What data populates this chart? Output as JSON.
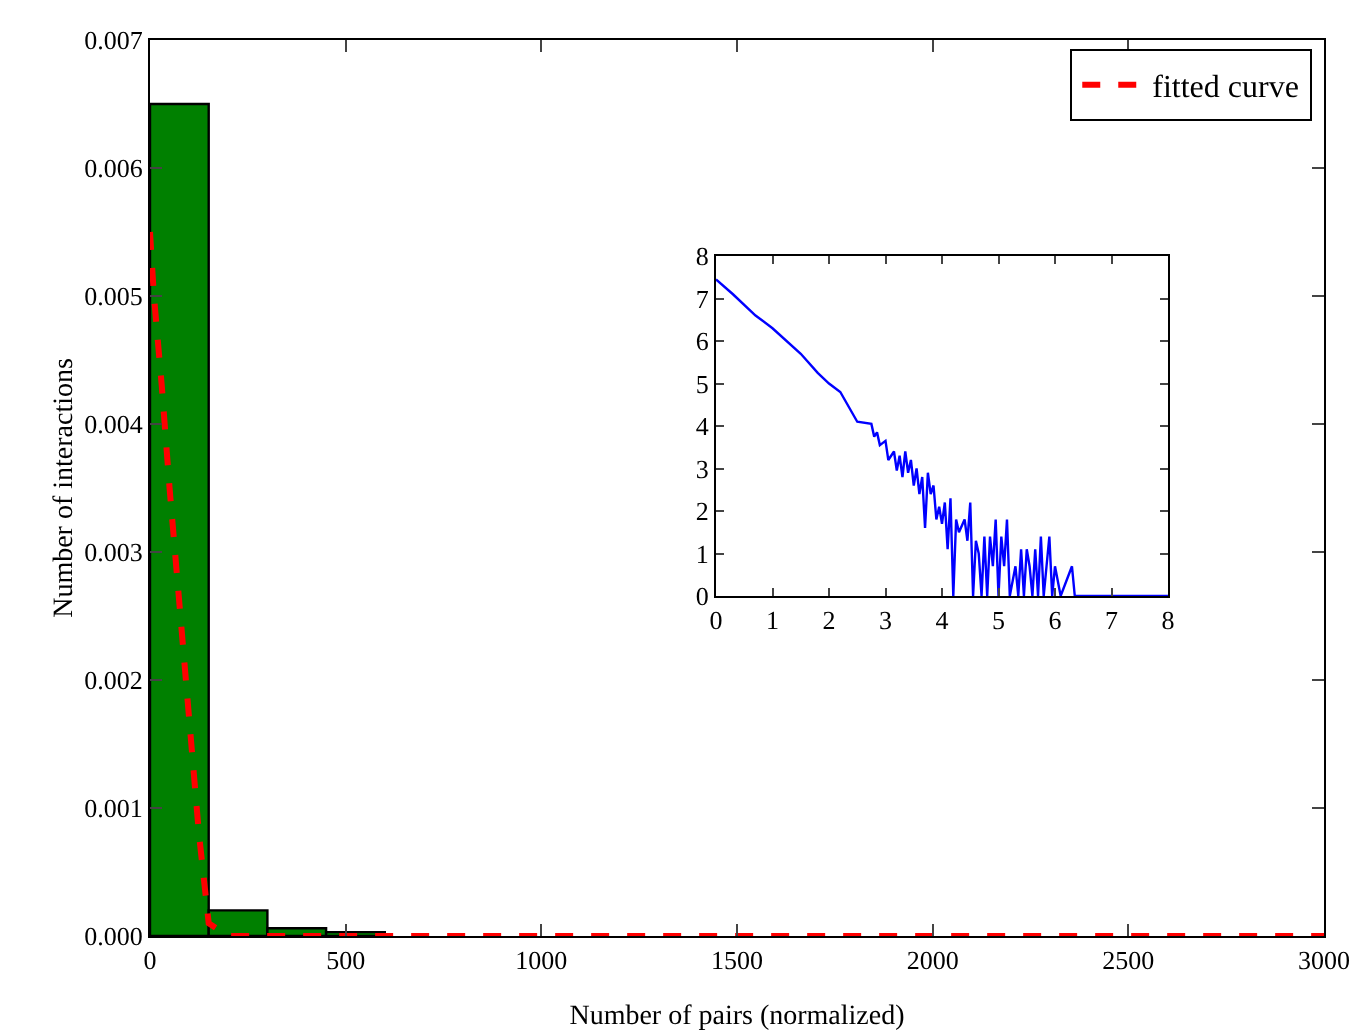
{
  "chart_data": [
    {
      "type": "histogram",
      "xlabel": "Number of pairs (normalized)",
      "ylabel": "Number of interactions",
      "bins": [
        0,
        150,
        300,
        450,
        600,
        750,
        900,
        1050,
        1200,
        1350,
        1500,
        1650,
        1800,
        1950,
        2100,
        2250,
        2400,
        2550,
        2700,
        2850,
        3000
      ],
      "values": [
        0.0065,
        0.0002,
        6e-05,
        3e-05,
        0,
        0,
        0,
        0,
        0,
        0,
        0,
        0,
        0,
        0,
        0,
        0,
        0,
        0,
        0,
        0
      ],
      "color": "#008000",
      "series": [
        {
          "type": "line",
          "name": "fitted curve",
          "color": "#ff0000",
          "line_style": "dashed",
          "x": [
            0,
            10,
            30,
            50,
            75,
            100,
            125,
            150,
            200,
            3000
          ],
          "values": [
            0.0055,
            0.005,
            0.0043,
            0.0035,
            0.0026,
            0.0017,
            0.0008,
            0.0001,
            0,
            0
          ]
        }
      ],
      "xlim": [
        0,
        3000
      ],
      "xticks": [
        0,
        500,
        1000,
        1500,
        2000,
        2500,
        3000
      ],
      "ylim": [
        0,
        0.007
      ],
      "yticks": [
        {
          "value": 0,
          "label": "0.000"
        },
        {
          "value": 0.001,
          "label": "0.001"
        },
        {
          "value": 0.002,
          "label": "0.002"
        },
        {
          "value": 0.003,
          "label": "0.003"
        },
        {
          "value": 0.004,
          "label": "0.004"
        },
        {
          "value": 0.005,
          "label": "0.005"
        },
        {
          "value": 0.006,
          "label": "0.006"
        },
        {
          "value": 0.007,
          "label": "0.007"
        }
      ],
      "grid": false,
      "legend": "top right"
    },
    {
      "type": "line",
      "color": "#0000ff",
      "x": [
        0,
        0.3,
        0.7,
        1.0,
        1.5,
        1.8,
        2.0,
        2.2,
        2.5,
        2.75,
        2.8,
        2.85,
        2.9,
        3.0,
        3.05,
        3.15,
        3.2,
        3.25,
        3.3,
        3.35,
        3.4,
        3.45,
        3.5,
        3.55,
        3.6,
        3.65,
        3.7,
        3.75,
        3.8,
        3.85,
        3.9,
        3.95,
        4.0,
        4.05,
        4.1,
        4.15,
        4.2,
        4.25,
        4.3,
        4.4,
        4.45,
        4.5,
        4.55,
        4.6,
        4.65,
        4.7,
        4.75,
        4.8,
        4.85,
        4.9,
        4.95,
        5.0,
        5.05,
        5.1,
        5.15,
        5.2,
        5.3,
        5.35,
        5.4,
        5.45,
        5.5,
        5.55,
        5.6,
        5.65,
        5.7,
        5.75,
        5.8,
        5.85,
        5.9,
        5.95,
        6.0,
        6.1,
        6.3,
        6.35,
        6.5,
        8.0
      ],
      "values": [
        7.45,
        7.1,
        6.6,
        6.3,
        5.7,
        5.25,
        5.0,
        4.8,
        4.1,
        4.05,
        3.75,
        3.85,
        3.55,
        3.65,
        3.2,
        3.4,
        2.95,
        3.3,
        2.8,
        3.4,
        2.9,
        3.2,
        2.6,
        3.0,
        2.4,
        2.8,
        1.6,
        2.9,
        2.4,
        2.6,
        1.8,
        2.1,
        1.7,
        2.2,
        1.1,
        2.3,
        0,
        1.8,
        1.5,
        1.8,
        1.3,
        2.2,
        0,
        1.3,
        1.0,
        0,
        1.4,
        0,
        1.4,
        0.7,
        1.8,
        0,
        1.4,
        0.7,
        1.8,
        0,
        0.7,
        0,
        1.1,
        0,
        1.1,
        0.7,
        0,
        1.1,
        0,
        1.4,
        0,
        0.7,
        1.4,
        0,
        0.7,
        0,
        0.7,
        0,
        0,
        0
      ],
      "xlim": [
        0,
        8
      ],
      "xticks": [
        0,
        1,
        2,
        3,
        4,
        5,
        6,
        7,
        8
      ],
      "ylim": [
        0,
        8
      ],
      "yticks": [
        0,
        1,
        2,
        3,
        4,
        5,
        6,
        7,
        8
      ],
      "grid": false,
      "legend": false
    }
  ]
}
